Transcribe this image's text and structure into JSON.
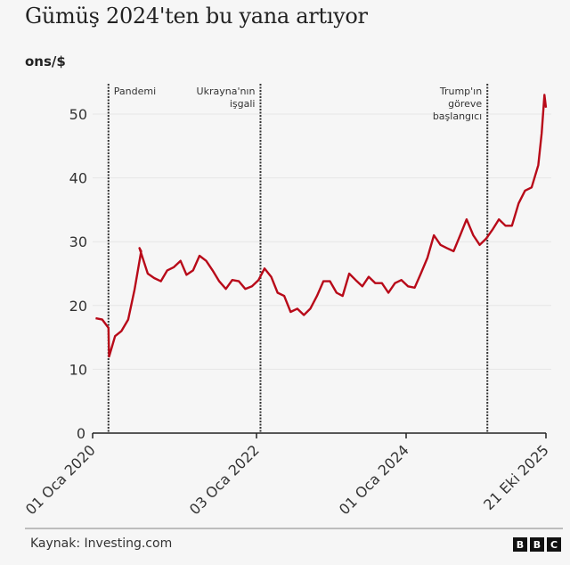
{
  "header": {
    "title": "Gümüş 2024'ten bu yana artıyor",
    "unit_label": "ons/$"
  },
  "footer": {
    "source": "Kaynak: Investing.com",
    "logo_letters": [
      "B",
      "B",
      "C"
    ]
  },
  "colors": {
    "line": "#b80a19",
    "background": "#f6f6f6",
    "grid": "#e6e6e6",
    "axis": "#222222"
  },
  "chart_data": {
    "type": "line",
    "title": "Gümüş 2024'ten bu yana artıyor",
    "xlabel": "",
    "ylabel": "ons/$",
    "ylim": [
      0,
      55
    ],
    "yticks": [
      0,
      10,
      20,
      30,
      40,
      50
    ],
    "grid": true,
    "x_tick_labels": [
      "01 Oca 2020",
      "03 Oca 2022",
      "01 Oca 2024",
      "21 Eki 2025"
    ],
    "x_range": [
      "2020-01-01",
      "2025-10-21"
    ],
    "annotations": [
      {
        "label": "Pandemi",
        "date": "2020-03-15",
        "align": "right"
      },
      {
        "label": "Ukrayna'nın işgali",
        "lines": [
          "Ukrayna'nın",
          "işgali"
        ],
        "date": "2022-02-24",
        "align": "left"
      },
      {
        "label": "Trump'ın göreve başlangıcı",
        "lines": [
          "Trump'ın",
          "göreve",
          "başlangıcı"
        ],
        "date": "2025-01-20",
        "align": "left"
      }
    ],
    "series": [
      {
        "name": "Gümüş (ons/$)",
        "x": [
          "2020-01",
          "2020-02",
          "2020-03",
          "2020-03-18",
          "2020-04",
          "2020-05",
          "2020-06",
          "2020-07",
          "2020-08",
          "2020-08-07",
          "2020-09",
          "2020-10",
          "2020-11",
          "2020-12",
          "2021-01",
          "2021-02",
          "2021-03",
          "2021-04",
          "2021-05",
          "2021-06",
          "2021-07",
          "2021-08",
          "2021-09",
          "2021-10",
          "2021-11",
          "2021-12",
          "2022-01",
          "2022-02",
          "2022-03",
          "2022-04",
          "2022-05",
          "2022-06",
          "2022-07",
          "2022-08",
          "2022-09",
          "2022-10",
          "2022-11",
          "2022-12",
          "2023-01",
          "2023-02",
          "2023-03",
          "2023-04",
          "2023-05",
          "2023-06",
          "2023-07",
          "2023-08",
          "2023-09",
          "2023-10",
          "2023-11",
          "2023-12",
          "2024-01",
          "2024-02",
          "2024-03",
          "2024-04",
          "2024-05",
          "2024-06",
          "2024-07",
          "2024-08",
          "2024-09",
          "2024-10",
          "2024-11",
          "2024-12",
          "2025-01",
          "2025-02",
          "2025-03",
          "2025-04",
          "2025-05",
          "2025-06",
          "2025-07",
          "2025-08",
          "2025-09",
          "2025-10-01",
          "2025-10-14",
          "2025-10-21"
        ],
        "values": [
          18.0,
          17.8,
          16.5,
          12.0,
          15.2,
          16.0,
          17.8,
          22.5,
          28.5,
          29.0,
          25.0,
          24.3,
          23.8,
          25.5,
          26.0,
          27.0,
          24.8,
          25.5,
          27.8,
          27.0,
          25.5,
          23.8,
          22.6,
          24.0,
          23.8,
          22.6,
          23.0,
          24.0,
          25.8,
          24.5,
          22.0,
          21.5,
          19.0,
          19.5,
          18.5,
          19.5,
          21.5,
          23.8,
          23.8,
          22.0,
          21.5,
          25.0,
          24.0,
          23.0,
          24.5,
          23.5,
          23.5,
          22.0,
          23.5,
          24.0,
          23.0,
          22.8,
          25.0,
          27.5,
          31.0,
          29.5,
          29.0,
          28.5,
          31.0,
          33.5,
          31.0,
          29.5,
          30.5,
          32.0,
          33.5,
          32.5,
          32.5,
          36.0,
          38.0,
          38.5,
          42.0,
          47.0,
          53.0,
          51.0
        ]
      }
    ]
  }
}
